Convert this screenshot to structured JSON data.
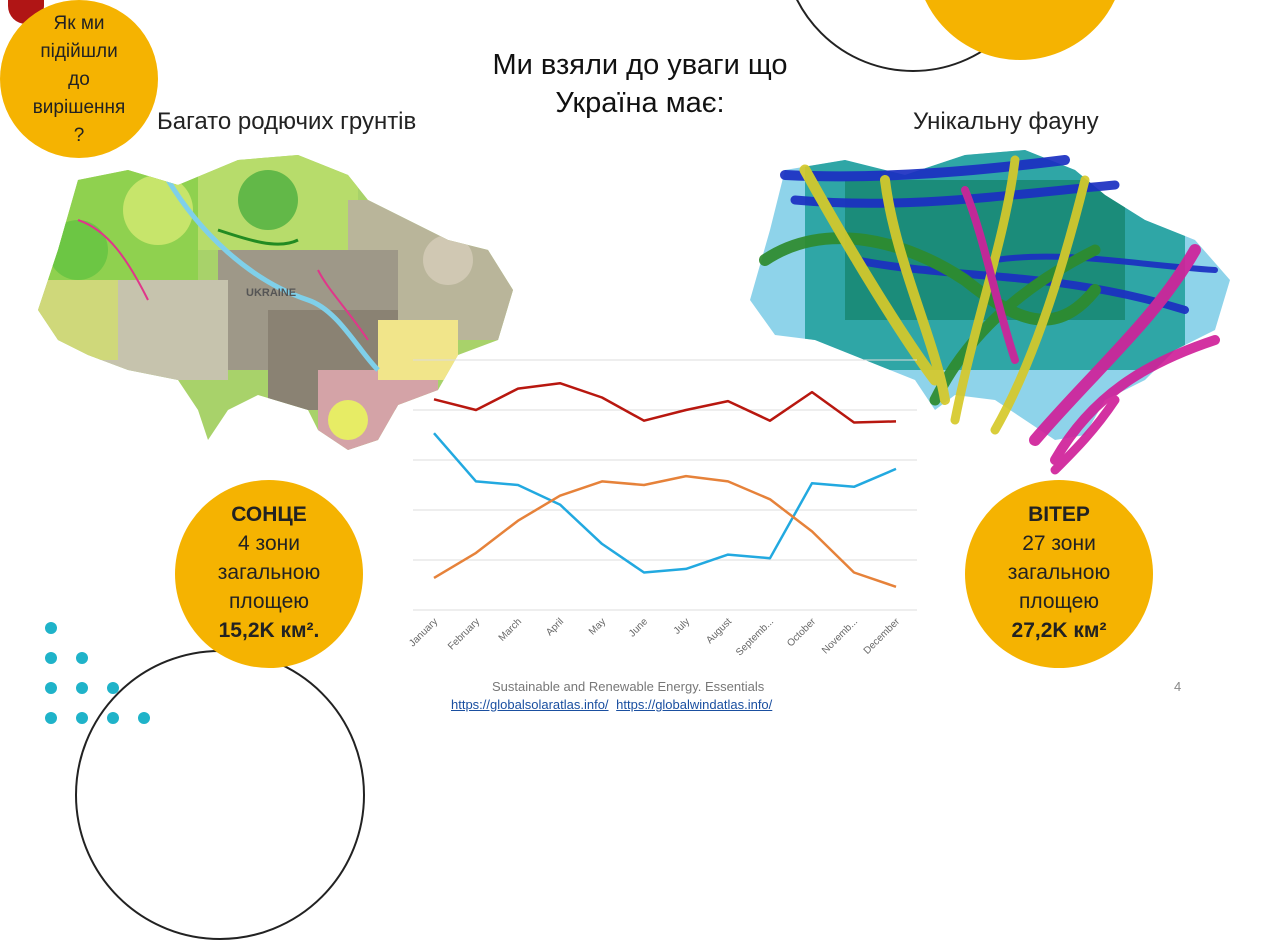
{
  "slide": {
    "title_line1": "Ми взяли до уваги що",
    "title_line2": "Україна має:",
    "page_number": "4"
  },
  "approach_badge": {
    "text_lines": [
      "Як ми",
      "підійшли",
      "до",
      "вирішення",
      "?"
    ]
  },
  "soil": {
    "caption": "Багато родючих грунтів",
    "map_label": "UKRAINE"
  },
  "fauna": {
    "caption": "Унікальну фауну"
  },
  "sun_badge": {
    "title": "СОНЦЕ",
    "line1": "4 зони",
    "line2": "загальною",
    "line3": "площею",
    "value": "15,2K км²."
  },
  "wind_badge": {
    "title": "ВІТЕР",
    "line1": "27 зони",
    "line2": "загальною",
    "line3": "площею",
    "value": "27,2K км²"
  },
  "footer": {
    "source": "Sustainable and Renewable Energy. Essentials",
    "link1": "https://globalsolaratlas.info/",
    "link2": "https://globalwindatlas.info/"
  },
  "colors": {
    "accent_yellow": "#f5b301",
    "dark_red": "#b01515",
    "teal": "#1fb3c9",
    "series_red": "#b8170f",
    "series_blue": "#22a9e0",
    "series_orange": "#e6823a"
  },
  "chart_data": {
    "type": "line",
    "categories": [
      "January",
      "February",
      "March",
      "April",
      "May",
      "June",
      "July",
      "August",
      "Septemb...",
      "October",
      "Novemb...",
      "December"
    ],
    "series": [
      {
        "values": [
          3.9,
          3.6,
          4.2,
          4.35,
          3.95,
          3.3,
          3.6,
          3.85,
          3.3,
          4.1,
          3.25,
          3.28
        ]
      },
      {
        "values": [
          2.95,
          1.6,
          1.5,
          0.95,
          -0.15,
          -0.95,
          -0.85,
          -0.45,
          -0.55,
          1.55,
          1.45,
          1.95
        ]
      },
      {
        "values": [
          -1.1,
          -0.4,
          0.5,
          1.2,
          1.6,
          1.5,
          1.75,
          1.6,
          1.1,
          0.2,
          -0.95,
          -1.35
        ]
      }
    ],
    "ylim": [
      -2,
      5
    ],
    "grid": true
  }
}
